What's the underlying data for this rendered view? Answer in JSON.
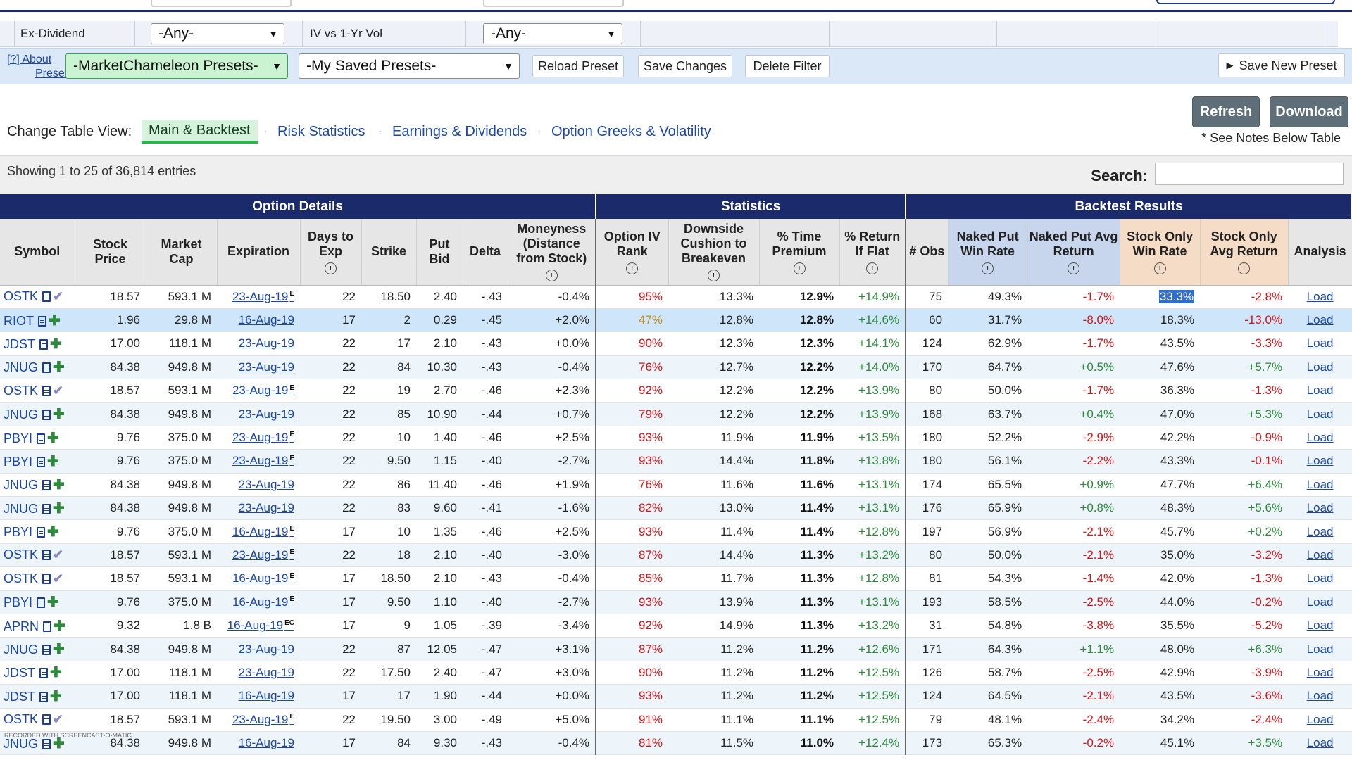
{
  "filters": {
    "ex_dividend_label": "Ex-Dividend",
    "ex_dividend_value": "-Any-",
    "iv_label": "IV vs 1-Yr Vol",
    "iv_value": "-Any-"
  },
  "presets": {
    "about_line1": "[?] About",
    "about_line2": "Presets",
    "mc_presets": "-MarketChameleon Presets-",
    "my_presets": "-My Saved Presets-",
    "reload": "Reload Preset",
    "save_changes": "Save Changes",
    "delete_filter": "Delete Filter",
    "save_new": "Save New Preset"
  },
  "view": {
    "label": "Change Table View:",
    "tabs": [
      "Main & Backtest",
      "Risk Statistics",
      "Earnings & Dividends",
      "Option Greeks & Volatility"
    ],
    "refresh": "Refresh",
    "download": "Download",
    "notes": "* See Notes Below Table"
  },
  "info": {
    "showing": "Showing 1 to 25 of 36,814 entries",
    "search_label": "Search:"
  },
  "table": {
    "groups": [
      "Option Details",
      "Statistics",
      "Backtest Results"
    ],
    "headers": {
      "symbol": "Symbol",
      "stock_price": "Stock Price",
      "market_cap": "Market Cap",
      "expiration": "Expiration",
      "days": "Days to Exp",
      "strike": "Strike",
      "put_bid": "Put Bid",
      "delta": "Delta",
      "moneyness": "Moneyness (Distance from Stock)",
      "iv_rank": "Option IV Rank",
      "cushion": "Downside Cushion to Breakeven",
      "time_premium": "% Time Premium",
      "return_flat": "% Return If Flat",
      "obs": "# Obs",
      "np_win": "Naked Put Win Rate",
      "np_avg": "Naked Put Avg Return",
      "so_win": "Stock Only Win Rate",
      "so_avg": "Stock Only Avg Return",
      "analysis": "Analysis"
    },
    "rows": [
      {
        "sym": "OSTK",
        "icon": "check",
        "price": "18.57",
        "cap": "593.1 M",
        "exp": "23-Aug-19",
        "flag": "E",
        "days": "22",
        "strike": "18.50",
        "bid": "2.40",
        "delta": "-.43",
        "money": "-0.4%",
        "ivr": "95%",
        "ivc": "red",
        "cush": "13.3%",
        "tp": "12.9%",
        "rf": "+14.9%",
        "obs": "75",
        "npw": "49.3%",
        "npa": "-1.7%",
        "sow": "33.3%",
        "soa": "-2.8%",
        "load": "Load"
      },
      {
        "sym": "RIOT",
        "icon": "plus",
        "price": "1.96",
        "cap": "29.8 M",
        "exp": "16-Aug-19",
        "flag": "",
        "days": "17",
        "strike": "2",
        "bid": "0.29",
        "delta": "-.45",
        "money": "+2.0%",
        "ivr": "47%",
        "ivc": "orange",
        "cush": "12.8%",
        "tp": "12.8%",
        "rf": "+14.6%",
        "obs": "60",
        "npw": "31.7%",
        "npa": "-8.0%",
        "sow": "18.3%",
        "soa": "-13.0%",
        "load": "Load"
      },
      {
        "sym": "JDST",
        "icon": "plus",
        "price": "17.00",
        "cap": "118.1 M",
        "exp": "23-Aug-19",
        "flag": "",
        "days": "22",
        "strike": "17",
        "bid": "2.10",
        "delta": "-.43",
        "money": "+0.0%",
        "ivr": "90%",
        "ivc": "red",
        "cush": "12.3%",
        "tp": "12.3%",
        "rf": "+14.1%",
        "obs": "124",
        "npw": "62.9%",
        "npa": "-1.7%",
        "sow": "43.5%",
        "soa": "-3.3%",
        "load": "Load"
      },
      {
        "sym": "JNUG",
        "icon": "plus",
        "price": "84.38",
        "cap": "949.8 M",
        "exp": "23-Aug-19",
        "flag": "",
        "days": "22",
        "strike": "84",
        "bid": "10.30",
        "delta": "-.43",
        "money": "-0.4%",
        "ivr": "76%",
        "ivc": "red",
        "cush": "12.7%",
        "tp": "12.2%",
        "rf": "+14.0%",
        "obs": "170",
        "npw": "64.7%",
        "npa": "+0.5%",
        "sow": "47.6%",
        "soa": "+5.7%",
        "load": "Load"
      },
      {
        "sym": "OSTK",
        "icon": "check",
        "price": "18.57",
        "cap": "593.1 M",
        "exp": "23-Aug-19",
        "flag": "E",
        "days": "22",
        "strike": "19",
        "bid": "2.70",
        "delta": "-.46",
        "money": "+2.3%",
        "ivr": "92%",
        "ivc": "red",
        "cush": "12.2%",
        "tp": "12.2%",
        "rf": "+13.9%",
        "obs": "80",
        "npw": "50.0%",
        "npa": "-1.7%",
        "sow": "36.3%",
        "soa": "-1.3%",
        "load": "Load"
      },
      {
        "sym": "JNUG",
        "icon": "plus",
        "price": "84.38",
        "cap": "949.8 M",
        "exp": "23-Aug-19",
        "flag": "",
        "days": "22",
        "strike": "85",
        "bid": "10.90",
        "delta": "-.44",
        "money": "+0.7%",
        "ivr": "79%",
        "ivc": "red",
        "cush": "12.2%",
        "tp": "12.2%",
        "rf": "+13.9%",
        "obs": "168",
        "npw": "63.7%",
        "npa": "+0.4%",
        "sow": "47.0%",
        "soa": "+5.3%",
        "load": "Load"
      },
      {
        "sym": "PBYI",
        "icon": "plus",
        "price": "9.76",
        "cap": "375.0 M",
        "exp": "23-Aug-19",
        "flag": "E",
        "days": "22",
        "strike": "10",
        "bid": "1.40",
        "delta": "-.46",
        "money": "+2.5%",
        "ivr": "93%",
        "ivc": "red",
        "cush": "11.9%",
        "tp": "11.9%",
        "rf": "+13.5%",
        "obs": "180",
        "npw": "52.2%",
        "npa": "-2.9%",
        "sow": "42.2%",
        "soa": "-0.9%",
        "load": "Load"
      },
      {
        "sym": "PBYI",
        "icon": "plus",
        "price": "9.76",
        "cap": "375.0 M",
        "exp": "23-Aug-19",
        "flag": "E",
        "days": "22",
        "strike": "9.50",
        "bid": "1.15",
        "delta": "-.40",
        "money": "-2.7%",
        "ivr": "93%",
        "ivc": "red",
        "cush": "14.4%",
        "tp": "11.8%",
        "rf": "+13.8%",
        "obs": "180",
        "npw": "56.1%",
        "npa": "-2.2%",
        "sow": "43.3%",
        "soa": "-0.1%",
        "load": "Load"
      },
      {
        "sym": "JNUG",
        "icon": "plus",
        "price": "84.38",
        "cap": "949.8 M",
        "exp": "23-Aug-19",
        "flag": "",
        "days": "22",
        "strike": "86",
        "bid": "11.40",
        "delta": "-.46",
        "money": "+1.9%",
        "ivr": "76%",
        "ivc": "red",
        "cush": "11.6%",
        "tp": "11.6%",
        "rf": "+13.1%",
        "obs": "174",
        "npw": "65.5%",
        "npa": "+0.9%",
        "sow": "47.7%",
        "soa": "+6.4%",
        "load": "Load"
      },
      {
        "sym": "JNUG",
        "icon": "plus",
        "price": "84.38",
        "cap": "949.8 M",
        "exp": "23-Aug-19",
        "flag": "",
        "days": "22",
        "strike": "83",
        "bid": "9.60",
        "delta": "-.41",
        "money": "-1.6%",
        "ivr": "82%",
        "ivc": "red",
        "cush": "13.0%",
        "tp": "11.4%",
        "rf": "+13.1%",
        "obs": "176",
        "npw": "65.9%",
        "npa": "+0.8%",
        "sow": "48.3%",
        "soa": "+5.6%",
        "load": "Load"
      },
      {
        "sym": "PBYI",
        "icon": "plus",
        "price": "9.76",
        "cap": "375.0 M",
        "exp": "16-Aug-19",
        "flag": "E",
        "days": "17",
        "strike": "10",
        "bid": "1.35",
        "delta": "-.46",
        "money": "+2.5%",
        "ivr": "93%",
        "ivc": "red",
        "cush": "11.4%",
        "tp": "11.4%",
        "rf": "+12.8%",
        "obs": "197",
        "npw": "56.9%",
        "npa": "-2.1%",
        "sow": "45.7%",
        "soa": "+0.2%",
        "load": "Load"
      },
      {
        "sym": "OSTK",
        "icon": "check",
        "price": "18.57",
        "cap": "593.1 M",
        "exp": "23-Aug-19",
        "flag": "E",
        "days": "22",
        "strike": "18",
        "bid": "2.10",
        "delta": "-.40",
        "money": "-3.0%",
        "ivr": "87%",
        "ivc": "red",
        "cush": "14.4%",
        "tp": "11.3%",
        "rf": "+13.2%",
        "obs": "80",
        "npw": "50.0%",
        "npa": "-2.1%",
        "sow": "35.0%",
        "soa": "-3.2%",
        "load": "Load"
      },
      {
        "sym": "OSTK",
        "icon": "check",
        "price": "18.57",
        "cap": "593.1 M",
        "exp": "16-Aug-19",
        "flag": "E",
        "days": "17",
        "strike": "18.50",
        "bid": "2.10",
        "delta": "-.43",
        "money": "-0.4%",
        "ivr": "85%",
        "ivc": "red",
        "cush": "11.7%",
        "tp": "11.3%",
        "rf": "+12.8%",
        "obs": "81",
        "npw": "54.3%",
        "npa": "-1.4%",
        "sow": "42.0%",
        "soa": "-1.3%",
        "load": "Load"
      },
      {
        "sym": "PBYI",
        "icon": "plus",
        "price": "9.76",
        "cap": "375.0 M",
        "exp": "16-Aug-19",
        "flag": "E",
        "days": "17",
        "strike": "9.50",
        "bid": "1.10",
        "delta": "-.40",
        "money": "-2.7%",
        "ivr": "93%",
        "ivc": "red",
        "cush": "13.9%",
        "tp": "11.3%",
        "rf": "+13.1%",
        "obs": "193",
        "npw": "58.5%",
        "npa": "-2.5%",
        "sow": "44.0%",
        "soa": "-0.2%",
        "load": "Load"
      },
      {
        "sym": "APRN",
        "icon": "plus",
        "price": "9.32",
        "cap": "1.8 B",
        "exp": "16-Aug-19",
        "flag": "EC",
        "days": "17",
        "strike": "9",
        "bid": "1.05",
        "delta": "-.39",
        "money": "-3.4%",
        "ivr": "92%",
        "ivc": "red",
        "cush": "14.9%",
        "tp": "11.3%",
        "rf": "+13.2%",
        "obs": "31",
        "npw": "54.8%",
        "npa": "-3.8%",
        "sow": "35.5%",
        "soa": "-5.2%",
        "load": "Load"
      },
      {
        "sym": "JNUG",
        "icon": "plus",
        "price": "84.38",
        "cap": "949.8 M",
        "exp": "23-Aug-19",
        "flag": "",
        "days": "22",
        "strike": "87",
        "bid": "12.05",
        "delta": "-.47",
        "money": "+3.1%",
        "ivr": "87%",
        "ivc": "red",
        "cush": "11.2%",
        "tp": "11.2%",
        "rf": "+12.6%",
        "obs": "171",
        "npw": "64.3%",
        "npa": "+1.1%",
        "sow": "48.0%",
        "soa": "+6.3%",
        "load": "Load"
      },
      {
        "sym": "JDST",
        "icon": "plus",
        "price": "17.00",
        "cap": "118.1 M",
        "exp": "23-Aug-19",
        "flag": "",
        "days": "22",
        "strike": "17.50",
        "bid": "2.40",
        "delta": "-.47",
        "money": "+3.0%",
        "ivr": "90%",
        "ivc": "red",
        "cush": "11.2%",
        "tp": "11.2%",
        "rf": "+12.5%",
        "obs": "126",
        "npw": "58.7%",
        "npa": "-2.5%",
        "sow": "42.9%",
        "soa": "-3.9%",
        "load": "Load"
      },
      {
        "sym": "JDST",
        "icon": "plus",
        "price": "17.00",
        "cap": "118.1 M",
        "exp": "16-Aug-19",
        "flag": "",
        "days": "17",
        "strike": "17",
        "bid": "1.90",
        "delta": "-.44",
        "money": "+0.0%",
        "ivr": "93%",
        "ivc": "red",
        "cush": "11.2%",
        "tp": "11.2%",
        "rf": "+12.5%",
        "obs": "124",
        "npw": "64.5%",
        "npa": "-2.1%",
        "sow": "43.5%",
        "soa": "-3.6%",
        "load": "Load"
      },
      {
        "sym": "OSTK",
        "icon": "check",
        "price": "18.57",
        "cap": "593.1 M",
        "exp": "23-Aug-19",
        "flag": "E",
        "days": "22",
        "strike": "19.50",
        "bid": "3.00",
        "delta": "-.49",
        "money": "+5.0%",
        "ivr": "91%",
        "ivc": "red",
        "cush": "11.1%",
        "tp": "11.1%",
        "rf": "+12.5%",
        "obs": "79",
        "npw": "48.1%",
        "npa": "-2.4%",
        "sow": "34.2%",
        "soa": "-2.4%",
        "load": "Load"
      },
      {
        "sym": "JNUG",
        "icon": "plus",
        "price": "84.38",
        "cap": "949.8 M",
        "exp": "16-Aug-19",
        "flag": "",
        "days": "17",
        "strike": "84",
        "bid": "9.30",
        "delta": "-.43",
        "money": "-0.4%",
        "ivr": "81%",
        "ivc": "red",
        "cush": "11.5%",
        "tp": "11.0%",
        "rf": "+12.4%",
        "obs": "173",
        "npw": "65.3%",
        "npa": "-0.2%",
        "sow": "45.1%",
        "soa": "+3.5%",
        "load": "Load"
      }
    ]
  },
  "watermark": "RECORDED WITH SCREENCAST-O-MATIC"
}
